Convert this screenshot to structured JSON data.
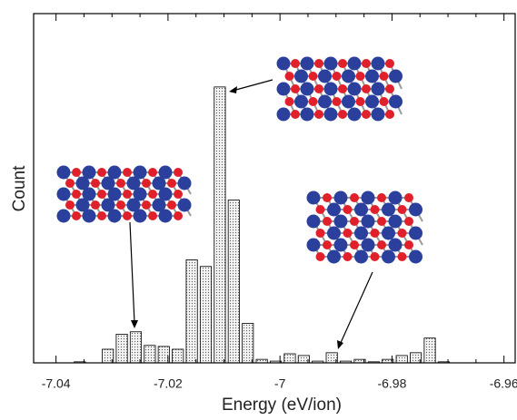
{
  "chart_data": {
    "type": "histogram",
    "xlabel": "Energy (eV/ion)",
    "ylabel": "Count",
    "bins": [
      -7.037,
      -7.0345,
      -7.032,
      -7.0295,
      -7.027,
      -7.0245,
      -7.022,
      -7.0195,
      -7.017,
      -7.0145,
      -7.012,
      -7.0095,
      -7.007,
      -7.0045,
      -7.002,
      -6.9995,
      -6.997,
      -6.9945,
      -6.992,
      -6.9895,
      -6.987,
      -6.9845,
      -6.982,
      -6.9795,
      -6.977,
      -6.9745,
      -6.972,
      -6.9695
    ],
    "values": [
      0.3,
      0,
      3.9,
      8.2,
      8.9,
      5,
      4.7,
      3.9,
      29.5,
      27.6,
      79,
      46.6,
      11.3,
      1,
      0.5,
      2.6,
      2.1,
      0.5,
      2.9,
      0.5,
      1,
      0.3,
      1,
      2.1,
      2.9,
      7.1,
      0.3
    ],
    "color": "#f2f2f2",
    "xlim": [
      -7.044,
      -6.958
    ],
    "ylim": [
      0,
      100
    ],
    "xticks": [
      -7.04,
      -7.02,
      -7,
      -6.98,
      -6.96
    ],
    "xminorticks": [
      -7.035,
      -7.03,
      -7.025,
      -7.015,
      -7.01,
      -7.005,
      -6.995,
      -6.99,
      -6.985,
      -6.975,
      -6.97,
      -6.965
    ]
  }
}
